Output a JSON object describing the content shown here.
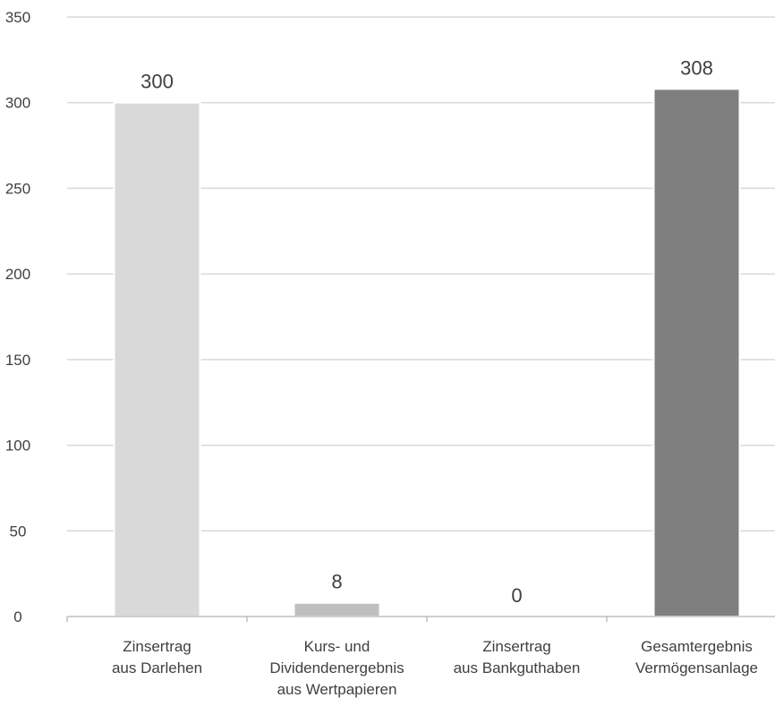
{
  "chart_data": {
    "type": "bar",
    "title": "",
    "xlabel": "",
    "ylabel": "",
    "ylim": [
      0,
      350
    ],
    "yticks": [
      0,
      50,
      100,
      150,
      200,
      250,
      300,
      350
    ],
    "grid": true,
    "legend": "none",
    "categories": [
      [
        "Zinsertrag",
        "aus Darlehen"
      ],
      [
        "Kurs- und",
        "Dividendenergebnis",
        "aus Wertpapieren"
      ],
      [
        "Zinsertrag",
        "aus Bankguthaben"
      ],
      [
        "Gesamtergebnis",
        "Vermögensanlage"
      ]
    ],
    "values": [
      300,
      8,
      0,
      308
    ],
    "data_labels": [
      "300",
      "8",
      "0",
      "308"
    ],
    "colors": [
      "#d9d9d9",
      "#bfbfbf",
      "#d9d9d9",
      "#7f7f7f"
    ],
    "gridline_color": "#d9d9d9",
    "axis_color": "#bfbfbf",
    "text_color": "#404040"
  }
}
